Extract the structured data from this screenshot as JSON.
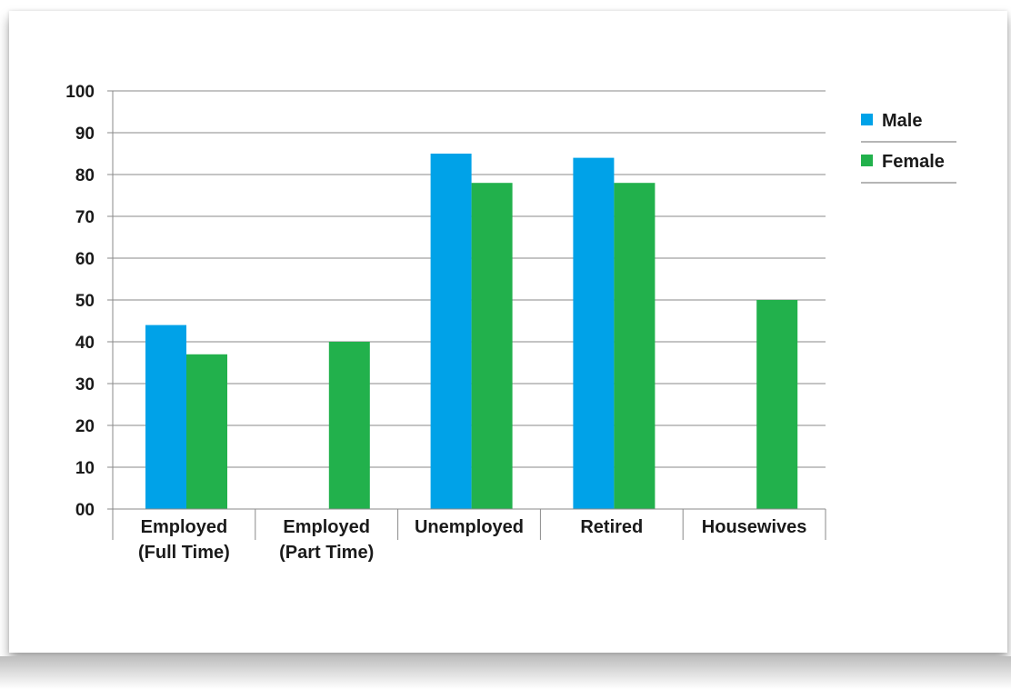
{
  "chart_data": {
    "type": "bar",
    "title": "",
    "xlabel": "",
    "ylabel": "",
    "ylim": [
      0,
      100
    ],
    "y_ticks": [
      "00",
      "10",
      "20",
      "30",
      "40",
      "50",
      "60",
      "70",
      "80",
      "90",
      "100"
    ],
    "grid": true,
    "legend_position": "right",
    "categories": [
      [
        "Employed",
        "(Full Time)"
      ],
      [
        "Employed",
        "(Part Time)"
      ],
      [
        "Unemployed"
      ],
      [
        "Retired"
      ],
      [
        "Housewives"
      ]
    ],
    "series": [
      {
        "name": "Male",
        "color": "#00a2e8",
        "values": [
          44,
          null,
          85,
          84,
          null
        ]
      },
      {
        "name": "Female",
        "color": "#22b14c",
        "values": [
          37,
          40,
          78,
          78,
          50
        ]
      }
    ]
  }
}
